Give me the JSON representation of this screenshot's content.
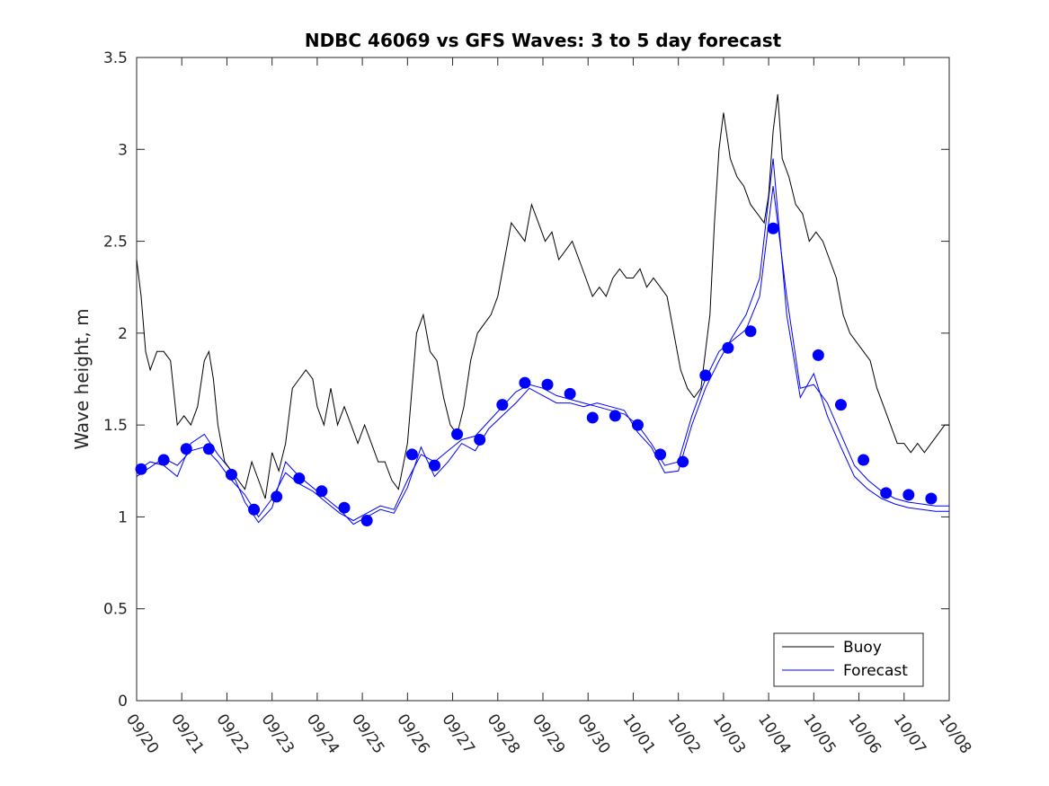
{
  "chart_data": {
    "type": "line",
    "title": "NDBC 46069 vs GFS Waves: 3 to 5 day forecast",
    "xlabel": "",
    "ylabel": "Wave height, m",
    "xlim": [
      0,
      18
    ],
    "ylim": [
      0,
      3.5
    ],
    "x_tick_labels": [
      "09/20",
      "09/21",
      "09/22",
      "09/23",
      "09/24",
      "09/25",
      "09/26",
      "09/27",
      "09/28",
      "09/29",
      "09/30",
      "10/01",
      "10/02",
      "10/03",
      "10/04",
      "10/05",
      "10/06",
      "10/07",
      "10/08"
    ],
    "y_ticks": [
      0,
      0.5,
      1,
      1.5,
      2,
      2.5,
      3,
      3.5
    ],
    "y_tick_labels": [
      "0",
      "0.5",
      "1",
      "1.5",
      "2",
      "2.5",
      "3",
      "3.5"
    ],
    "legend": {
      "position": "bottom-right",
      "entries": [
        "Buoy",
        "Forecast"
      ]
    },
    "colors": {
      "buoy": "#000000",
      "forecast": "#0000ff",
      "axis": "#262626"
    },
    "series": [
      {
        "name": "Buoy",
        "x": [
          0,
          0.1,
          0.2,
          0.3,
          0.45,
          0.6,
          0.75,
          0.9,
          1.05,
          1.2,
          1.35,
          1.5,
          1.6,
          1.7,
          1.8,
          1.95,
          2.1,
          2.25,
          2.4,
          2.55,
          2.7,
          2.85,
          3.0,
          3.15,
          3.3,
          3.45,
          3.6,
          3.75,
          3.9,
          4.0,
          4.15,
          4.3,
          4.45,
          4.6,
          4.75,
          4.9,
          5.05,
          5.2,
          5.35,
          5.5,
          5.65,
          5.8,
          6.0,
          6.1,
          6.2,
          6.35,
          6.5,
          6.65,
          6.8,
          6.95,
          7.1,
          7.25,
          7.4,
          7.55,
          7.7,
          7.85,
          8.0,
          8.15,
          8.3,
          8.45,
          8.6,
          8.75,
          8.9,
          9.05,
          9.2,
          9.35,
          9.5,
          9.65,
          9.8,
          9.95,
          10.1,
          10.25,
          10.4,
          10.55,
          10.7,
          10.85,
          11.0,
          11.15,
          11.3,
          11.45,
          11.6,
          11.75,
          11.9,
          12.05,
          12.2,
          12.35,
          12.5,
          12.6,
          12.7,
          12.8,
          12.9,
          13.0,
          13.15,
          13.3,
          13.45,
          13.6,
          13.75,
          13.9,
          14.0,
          14.1,
          14.2,
          14.3,
          14.45,
          14.6,
          14.75,
          14.9,
          15.05,
          15.2,
          15.35,
          15.5,
          15.65,
          15.8,
          15.95,
          16.1,
          16.25,
          16.4,
          16.55,
          16.7,
          16.85,
          17.0,
          17.15,
          17.3,
          17.45,
          17.6,
          17.75,
          17.9,
          18.0
        ],
        "values": [
          2.4,
          2.2,
          1.9,
          1.8,
          1.9,
          1.9,
          1.85,
          1.5,
          1.55,
          1.5,
          1.6,
          1.85,
          1.9,
          1.75,
          1.5,
          1.3,
          1.25,
          1.2,
          1.15,
          1.3,
          1.2,
          1.1,
          1.35,
          1.25,
          1.4,
          1.7,
          1.75,
          1.8,
          1.75,
          1.6,
          1.5,
          1.7,
          1.5,
          1.6,
          1.5,
          1.4,
          1.5,
          1.4,
          1.3,
          1.3,
          1.2,
          1.15,
          1.4,
          1.7,
          2.0,
          2.1,
          1.9,
          1.85,
          1.65,
          1.5,
          1.45,
          1.6,
          1.85,
          2.0,
          2.05,
          2.1,
          2.2,
          2.4,
          2.6,
          2.55,
          2.5,
          2.7,
          2.6,
          2.5,
          2.55,
          2.4,
          2.45,
          2.5,
          2.4,
          2.3,
          2.2,
          2.25,
          2.2,
          2.3,
          2.35,
          2.3,
          2.3,
          2.35,
          2.25,
          2.3,
          2.25,
          2.2,
          2.0,
          1.8,
          1.7,
          1.65,
          1.7,
          1.9,
          2.1,
          2.6,
          3.0,
          3.2,
          2.95,
          2.85,
          2.8,
          2.7,
          2.65,
          2.6,
          2.75,
          3.1,
          3.3,
          2.95,
          2.85,
          2.7,
          2.65,
          2.5,
          2.55,
          2.5,
          2.4,
          2.3,
          2.1,
          2.0,
          1.95,
          1.9,
          1.85,
          1.7,
          1.6,
          1.5,
          1.4,
          1.4,
          1.35,
          1.4,
          1.35,
          1.4,
          1.45,
          1.5,
          1.5
        ]
      },
      {
        "name": "Forecast",
        "x": [
          0.1,
          0.6,
          1.1,
          1.6,
          2.1,
          2.6,
          3.1,
          3.6,
          4.1,
          4.6,
          5.1,
          6.1,
          6.6,
          7.1,
          7.6,
          8.1,
          8.6,
          9.1,
          9.6,
          10.1,
          10.6,
          11.1,
          11.6,
          12.1,
          12.6,
          13.1,
          13.6,
          14.1,
          15.1,
          15.6,
          16.1,
          16.6,
          17.1,
          17.6
        ],
        "values": [
          1.26,
          1.31,
          1.37,
          1.37,
          1.23,
          1.04,
          1.11,
          1.21,
          1.14,
          1.05,
          0.98,
          1.34,
          1.28,
          1.45,
          1.42,
          1.61,
          1.73,
          1.72,
          1.67,
          1.54,
          1.55,
          1.5,
          1.34,
          1.3,
          1.77,
          1.92,
          2.01,
          2.57,
          1.88,
          1.61,
          1.31,
          1.13,
          1.12,
          1.1
        ]
      }
    ],
    "forecast_runs": [
      {
        "x": [
          0,
          0.3,
          0.6,
          0.9,
          1.2,
          1.5,
          1.8,
          2.1,
          2.4,
          2.7,
          3.0,
          3.3,
          3.6,
          3.9,
          4.2,
          4.5,
          4.8,
          5.1,
          5.4,
          5.7,
          6.0,
          6.3,
          6.6,
          6.9,
          7.2,
          7.5,
          7.8,
          8.1,
          8.4,
          8.7,
          9.0,
          9.3,
          9.6,
          9.9,
          10.2,
          10.5,
          10.8,
          11.1,
          11.4,
          11.7,
          12.0,
          12.3,
          12.6,
          12.9,
          13.2,
          13.5,
          13.8,
          14.1,
          14.4,
          14.7,
          15.0,
          15.3,
          15.6,
          15.9,
          16.2,
          16.5,
          16.8,
          17.1,
          17.4,
          17.7,
          18.0
        ],
        "values": [
          1.22,
          1.27,
          1.32,
          1.28,
          1.36,
          1.38,
          1.3,
          1.2,
          1.12,
          1.0,
          1.1,
          1.24,
          1.18,
          1.14,
          1.08,
          1.02,
          0.98,
          1.02,
          1.06,
          1.04,
          1.2,
          1.34,
          1.3,
          1.36,
          1.42,
          1.44,
          1.52,
          1.6,
          1.68,
          1.72,
          1.7,
          1.66,
          1.64,
          1.62,
          1.6,
          1.58,
          1.56,
          1.5,
          1.4,
          1.28,
          1.3,
          1.55,
          1.75,
          1.9,
          1.96,
          2.02,
          2.2,
          2.8,
          2.2,
          1.7,
          1.72,
          1.62,
          1.45,
          1.28,
          1.2,
          1.14,
          1.1,
          1.08,
          1.07,
          1.06,
          1.06
        ]
      },
      {
        "x": [
          0,
          0.3,
          0.6,
          0.9,
          1.2,
          1.5,
          1.8,
          2.1,
          2.4,
          2.7,
          3.0,
          3.3,
          3.6,
          3.9,
          4.2,
          4.5,
          4.8,
          5.1,
          5.4,
          5.7,
          6.0,
          6.3,
          6.6,
          6.9,
          7.2,
          7.5,
          7.8,
          8.1,
          8.4,
          8.7,
          9.0,
          9.3,
          9.6,
          9.9,
          10.2,
          10.5,
          10.8,
          11.1,
          11.4,
          11.7,
          12.0,
          12.3,
          12.6,
          12.9,
          13.2,
          13.5,
          13.8,
          14.1,
          14.4,
          14.7,
          15.0,
          15.3,
          15.6,
          15.9,
          16.2,
          16.5,
          16.8,
          17.1,
          17.4,
          17.7,
          18.0
        ],
        "values": [
          1.25,
          1.3,
          1.28,
          1.22,
          1.4,
          1.45,
          1.34,
          1.25,
          1.08,
          0.97,
          1.05,
          1.3,
          1.22,
          1.16,
          1.1,
          1.04,
          0.96,
          1.0,
          1.04,
          1.02,
          1.16,
          1.38,
          1.22,
          1.3,
          1.4,
          1.36,
          1.48,
          1.55,
          1.62,
          1.7,
          1.66,
          1.62,
          1.62,
          1.6,
          1.62,
          1.6,
          1.58,
          1.46,
          1.38,
          1.24,
          1.25,
          1.5,
          1.7,
          1.85,
          1.98,
          2.1,
          2.3,
          2.95,
          2.1,
          1.65,
          1.78,
          1.55,
          1.38,
          1.22,
          1.15,
          1.1,
          1.07,
          1.05,
          1.04,
          1.03,
          1.03
        ]
      }
    ]
  }
}
